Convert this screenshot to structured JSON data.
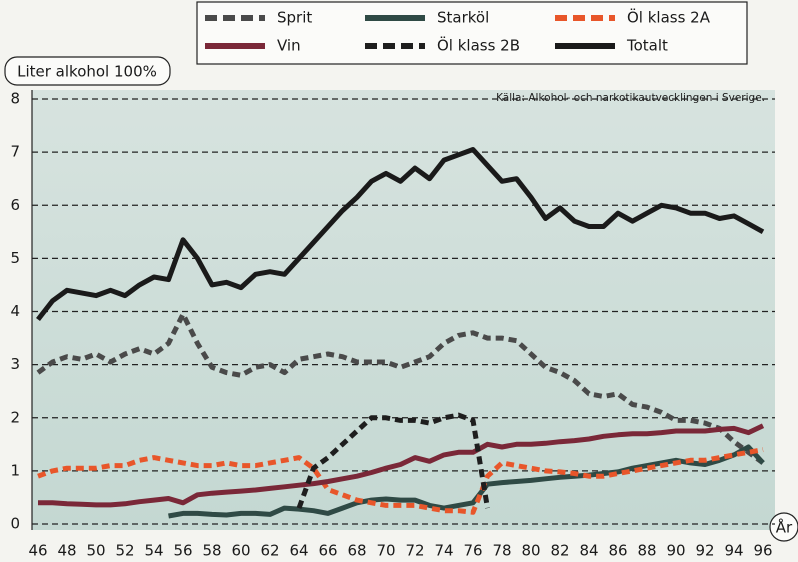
{
  "chart_data": {
    "type": "line",
    "y_label": "Liter alkohol 100%",
    "source": "Källa: Alkohol- och narkotikautvecklingen i Sverige.",
    "x_label": "År",
    "x": [
      46,
      47,
      48,
      49,
      50,
      51,
      52,
      53,
      54,
      55,
      56,
      57,
      58,
      59,
      60,
      61,
      62,
      63,
      64,
      65,
      66,
      67,
      68,
      69,
      70,
      71,
      72,
      73,
      74,
      75,
      76,
      77,
      78,
      79,
      80,
      81,
      82,
      83,
      84,
      85,
      86,
      87,
      88,
      89,
      90,
      91,
      92,
      93,
      94,
      95,
      96
    ],
    "xlim": [
      46,
      96
    ],
    "xticks": [
      46,
      48,
      50,
      52,
      54,
      56,
      58,
      60,
      62,
      64,
      66,
      68,
      70,
      72,
      74,
      76,
      78,
      80,
      82,
      84,
      86,
      88,
      90,
      92,
      94,
      96
    ],
    "ylim": [
      0,
      8
    ],
    "yticks": [
      0,
      1,
      2,
      3,
      4,
      5,
      6,
      7,
      8
    ],
    "grid": true,
    "series": [
      {
        "name": "Sprit",
        "color": "#4a4a4a",
        "dash": true,
        "values": [
          2.85,
          3.05,
          3.15,
          3.1,
          3.2,
          3.05,
          3.2,
          3.3,
          3.2,
          3.4,
          3.95,
          3.4,
          2.95,
          2.85,
          2.8,
          2.95,
          3.0,
          2.85,
          3.1,
          3.15,
          3.2,
          3.15,
          3.05,
          3.05,
          3.05,
          2.95,
          3.05,
          3.15,
          3.4,
          3.55,
          3.6,
          3.5,
          3.5,
          3.45,
          3.2,
          2.95,
          2.85,
          2.7,
          2.45,
          2.4,
          2.45,
          2.25,
          2.2,
          2.1,
          1.95,
          1.95,
          1.9,
          1.8,
          1.55,
          1.35,
          1.15
        ]
      },
      {
        "name": "Starköl",
        "color": "#2f4a45",
        "dash": false,
        "values": [
          null,
          null,
          null,
          null,
          null,
          null,
          null,
          null,
          null,
          0.15,
          0.2,
          0.2,
          0.18,
          0.17,
          0.2,
          0.2,
          0.18,
          0.3,
          0.28,
          0.25,
          0.2,
          0.3,
          0.4,
          0.45,
          0.47,
          0.45,
          0.45,
          0.35,
          0.3,
          0.35,
          0.4,
          0.75,
          0.78,
          0.8,
          0.82,
          0.85,
          0.88,
          0.9,
          0.92,
          0.95,
          0.98,
          1.05,
          1.1,
          1.15,
          1.2,
          1.15,
          1.12,
          1.2,
          1.3,
          1.45,
          1.15
        ]
      },
      {
        "name": "Öl klass 2A",
        "color": "#e8562a",
        "dash": true,
        "values": [
          0.9,
          1.0,
          1.05,
          1.05,
          1.05,
          1.1,
          1.1,
          1.2,
          1.25,
          1.2,
          1.15,
          1.1,
          1.1,
          1.15,
          1.1,
          1.1,
          1.15,
          1.2,
          1.25,
          1.05,
          0.65,
          0.55,
          0.45,
          0.4,
          0.35,
          0.35,
          0.35,
          0.3,
          0.25,
          0.25,
          0.22,
          0.9,
          1.15,
          1.1,
          1.05,
          1.0,
          0.98,
          0.95,
          0.9,
          0.9,
          0.95,
          1.0,
          1.05,
          1.1,
          1.15,
          1.2,
          1.2,
          1.25,
          1.3,
          1.35,
          1.4
        ]
      },
      {
        "name": "Vin",
        "color": "#7a2838",
        "dash": false,
        "values": [
          0.4,
          0.4,
          0.38,
          0.37,
          0.36,
          0.36,
          0.38,
          0.42,
          0.45,
          0.48,
          0.4,
          0.55,
          0.58,
          0.6,
          0.62,
          0.64,
          0.67,
          0.7,
          0.73,
          0.76,
          0.8,
          0.85,
          0.9,
          0.97,
          1.05,
          1.12,
          1.25,
          1.18,
          1.3,
          1.35,
          1.35,
          1.5,
          1.45,
          1.5,
          1.5,
          1.52,
          1.55,
          1.57,
          1.6,
          1.65,
          1.68,
          1.7,
          1.7,
          1.72,
          1.75,
          1.75,
          1.75,
          1.78,
          1.8,
          1.72,
          1.85
        ]
      },
      {
        "name": "Öl klass 2B",
        "color": "#1e1e1e",
        "dash": true,
        "values": [
          null,
          null,
          null,
          null,
          null,
          null,
          null,
          null,
          null,
          null,
          null,
          null,
          null,
          null,
          null,
          null,
          null,
          null,
          0.3,
          1.05,
          1.25,
          1.5,
          1.75,
          2.0,
          2.0,
          1.95,
          1.95,
          1.9,
          2.0,
          2.05,
          1.95,
          0.3,
          null,
          null,
          null,
          null,
          null,
          null,
          null,
          null,
          null,
          null,
          null,
          null,
          null,
          null,
          null,
          null,
          null,
          null,
          null
        ]
      },
      {
        "name": "Totalt",
        "color": "#1a1a1a",
        "dash": false,
        "values": [
          3.85,
          4.2,
          4.4,
          4.35,
          4.3,
          4.4,
          4.3,
          4.5,
          4.65,
          4.6,
          5.35,
          5.0,
          4.5,
          4.55,
          4.45,
          4.7,
          4.75,
          4.7,
          5.0,
          5.3,
          5.6,
          5.9,
          6.15,
          6.45,
          6.6,
          6.45,
          6.7,
          6.5,
          6.85,
          6.95,
          7.05,
          6.75,
          6.45,
          6.5,
          6.15,
          5.75,
          5.95,
          5.7,
          5.6,
          5.6,
          5.85,
          5.7,
          5.85,
          6.0,
          5.95,
          5.85,
          5.85,
          5.75,
          5.8,
          5.65,
          5.5
        ]
      }
    ]
  }
}
